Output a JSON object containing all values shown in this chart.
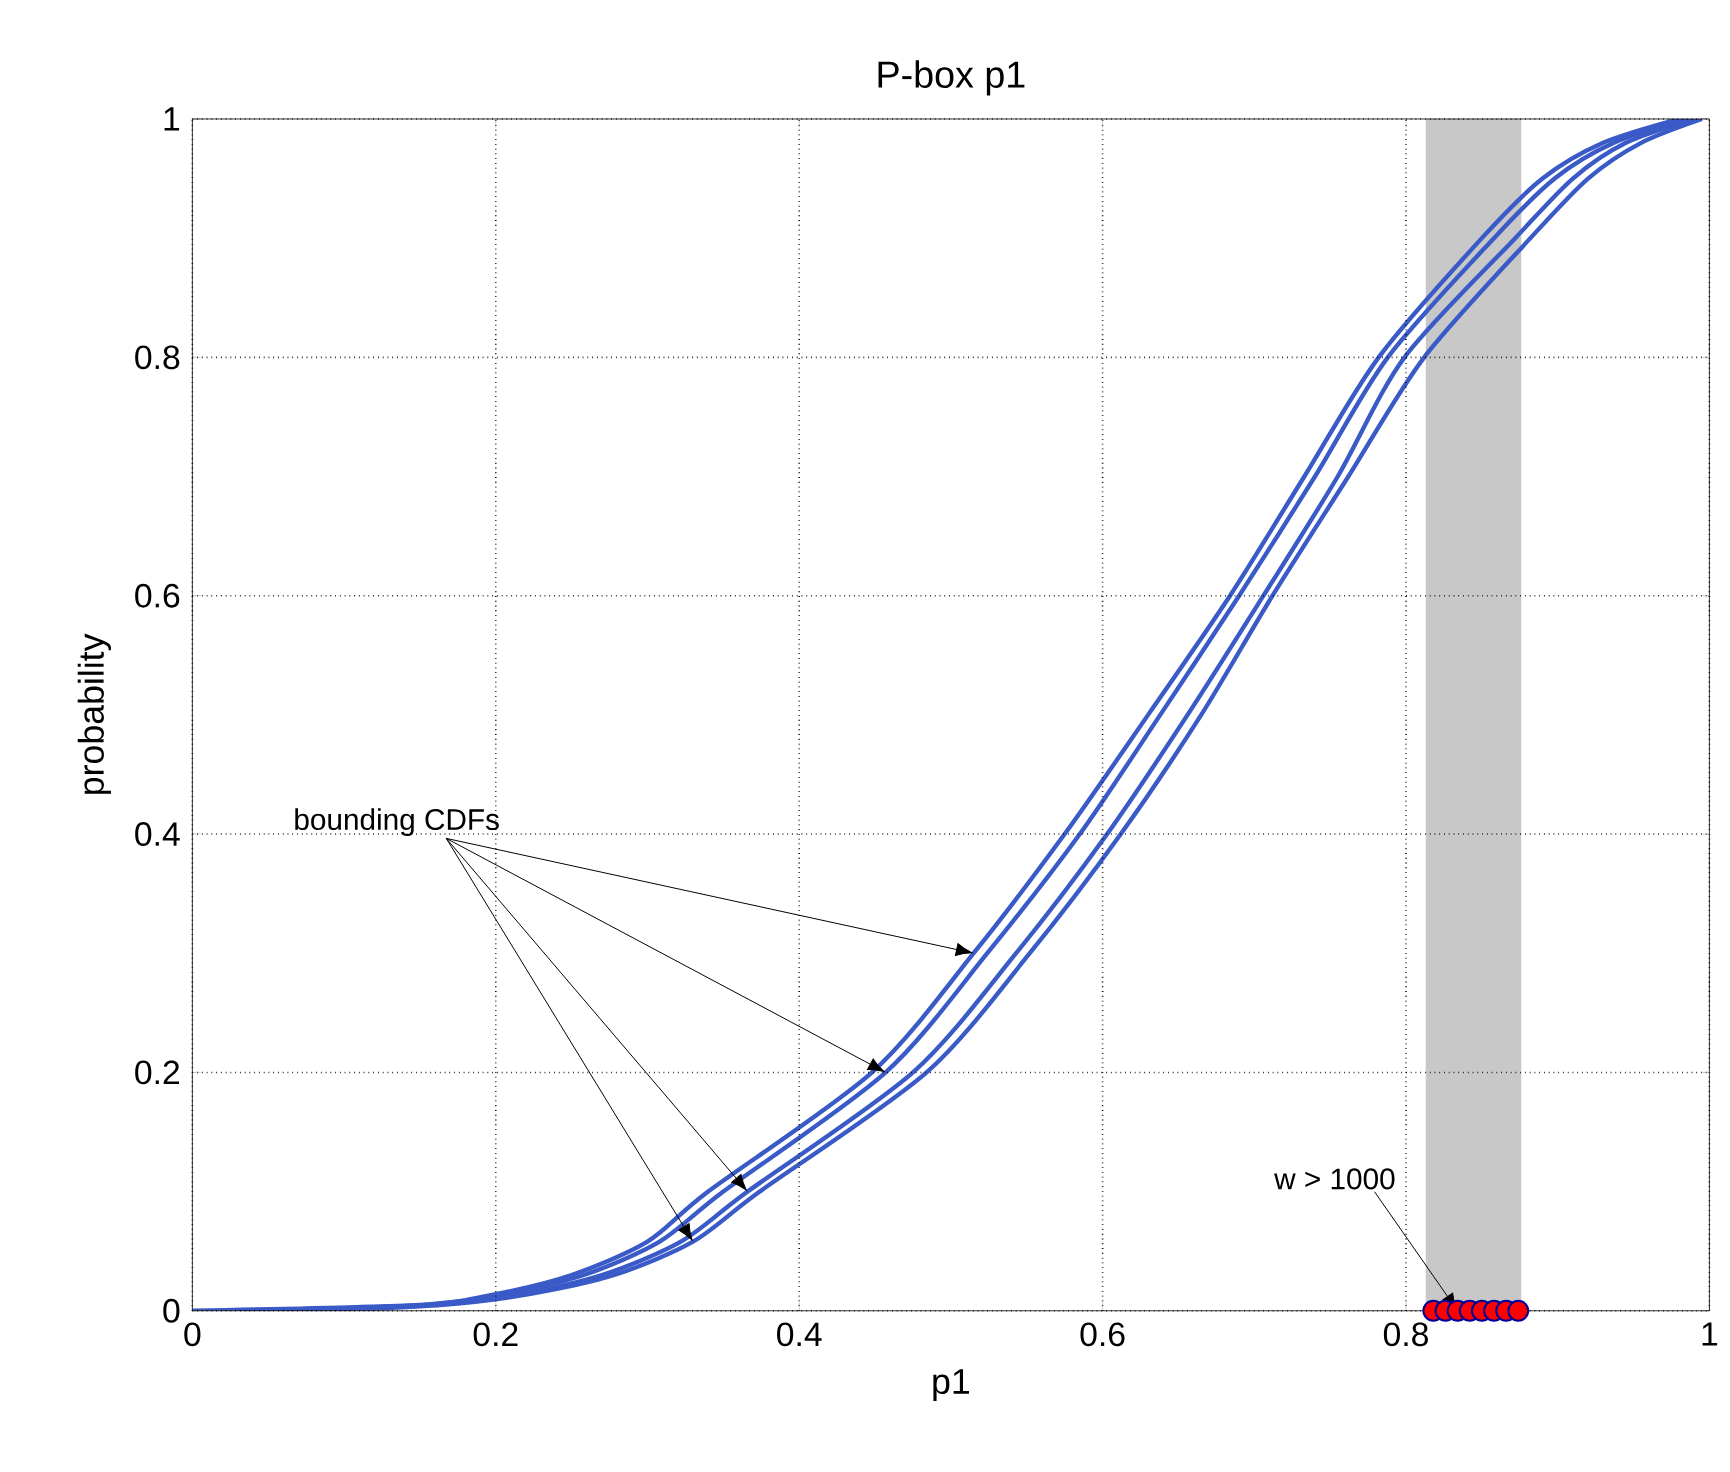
{
  "chart_data": {
    "type": "line",
    "title": "P-box  p1",
    "xlabel": "p1",
    "ylabel": "probability",
    "xlim": [
      0,
      1
    ],
    "ylim": [
      0,
      1
    ],
    "xticks": [
      0,
      0.2,
      0.4,
      0.6,
      0.8,
      1
    ],
    "yticks": [
      0,
      0.2,
      0.4,
      0.6,
      0.8,
      1
    ],
    "grid": true,
    "line_style": "solid",
    "series": [
      {
        "color": "#3a5bc7",
        "marker": "none",
        "x": [
          0,
          0.15,
          0.2,
          0.25,
          0.3,
          0.34,
          0.448,
          0.515,
          0.575,
          0.63,
          0.684,
          0.733,
          0.782,
          0.85,
          0.89,
          0.93,
          0.98
        ],
        "values": [
          0,
          0.005,
          0.014,
          0.03,
          0.058,
          0.1,
          0.2,
          0.3,
          0.4,
          0.5,
          0.6,
          0.7,
          0.8,
          0.9,
          0.95,
          0.98,
          1
        ]
      },
      {
        "color": "#3a5bc7",
        "marker": "none",
        "x": [
          0.03,
          0.155,
          0.205,
          0.258,
          0.308,
          0.35,
          0.457,
          0.524,
          0.585,
          0.638,
          0.69,
          0.74,
          0.788,
          0.858,
          0.898,
          0.937,
          0.985
        ],
        "values": [
          0,
          0.005,
          0.014,
          0.03,
          0.058,
          0.1,
          0.2,
          0.3,
          0.4,
          0.5,
          0.6,
          0.7,
          0.8,
          0.9,
          0.95,
          0.98,
          1
        ]
      },
      {
        "color": "#3a5bc7",
        "marker": "none",
        "x": [
          0.06,
          0.16,
          0.215,
          0.27,
          0.322,
          0.366,
          0.475,
          0.543,
          0.603,
          0.656,
          0.706,
          0.755,
          0.799,
          0.872,
          0.91,
          0.945,
          0.99
        ],
        "values": [
          0,
          0.005,
          0.014,
          0.03,
          0.058,
          0.1,
          0.2,
          0.3,
          0.4,
          0.5,
          0.6,
          0.7,
          0.8,
          0.9,
          0.95,
          0.98,
          1
        ]
      },
      {
        "color": "#3a5bc7",
        "marker": "none",
        "x": [
          0.09,
          0.165,
          0.222,
          0.278,
          0.33,
          0.374,
          0.484,
          0.552,
          0.612,
          0.665,
          0.712,
          0.762,
          0.812,
          0.882,
          0.92,
          0.955,
          0.995
        ],
        "values": [
          0,
          0.005,
          0.014,
          0.03,
          0.058,
          0.1,
          0.2,
          0.3,
          0.4,
          0.5,
          0.6,
          0.7,
          0.8,
          0.9,
          0.95,
          0.98,
          1
        ]
      },
      {
        "type": "scatter",
        "color": "#ff0000",
        "marker": "circle",
        "x": [
          0.818,
          0.826,
          0.834,
          0.842,
          0.85,
          0.858,
          0.866,
          0.874
        ],
        "values": [
          0,
          0,
          0,
          0,
          0,
          0,
          0,
          0
        ]
      }
    ],
    "bands": [
      {
        "axis": "x",
        "from": 0.813,
        "to": 0.876,
        "color": "#c8c8c8"
      }
    ],
    "annotations": [
      {
        "text": "bounding CDFs",
        "x": 0.515,
        "y": 0.3
      },
      {
        "text": "w > 1000",
        "x": 0.834,
        "y": 0
      }
    ]
  }
}
